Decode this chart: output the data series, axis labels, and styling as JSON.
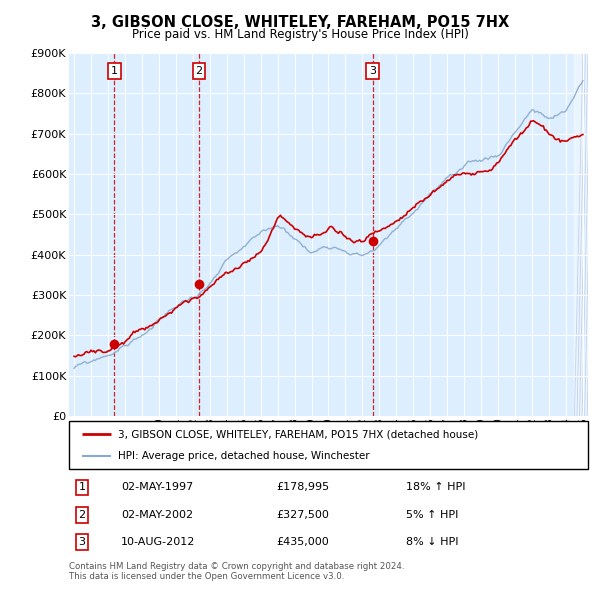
{
  "title": "3, GIBSON CLOSE, WHITELEY, FAREHAM, PO15 7HX",
  "subtitle": "Price paid vs. HM Land Registry's House Price Index (HPI)",
  "sales": [
    {
      "num": 1,
      "date": "02-MAY-1997",
      "price": 178995,
      "pct": "18%",
      "dir": "↑",
      "year": 1997.37
    },
    {
      "num": 2,
      "date": "02-MAY-2002",
      "price": 327500,
      "pct": "5%",
      "dir": "↑",
      "year": 2002.37
    },
    {
      "num": 3,
      "date": "10-AUG-2012",
      "price": 435000,
      "pct": "8%",
      "dir": "↓",
      "year": 2012.61
    }
  ],
  "legend_line1": "3, GIBSON CLOSE, WHITELEY, FAREHAM, PO15 7HX (detached house)",
  "legend_line2": "HPI: Average price, detached house, Winchester",
  "footer1": "Contains HM Land Registry data © Crown copyright and database right 2024.",
  "footer2": "This data is licensed under the Open Government Licence v3.0.",
  "red_color": "#cc0000",
  "blue_color": "#88aacc",
  "plot_bg": "#ddeeff",
  "hatch_color": "#aabbdd",
  "ylim_max": 900000,
  "xlim_start": 1994.7,
  "xlim_end": 2025.3,
  "hpi_anchors_x": [
    1995,
    1996,
    1997,
    1998,
    1999,
    2000,
    2001,
    2002,
    2003,
    2004,
    2005,
    2006,
    2007,
    2008,
    2009,
    2010,
    2011,
    2012,
    2013,
    2014,
    2015,
    2016,
    2017,
    2018,
    2019,
    2020,
    2021,
    2022,
    2023,
    2024,
    2025
  ],
  "hpi_anchors_y": [
    118000,
    128000,
    148000,
    170000,
    198000,
    230000,
    265000,
    290000,
    320000,
    365000,
    390000,
    415000,
    440000,
    415000,
    375000,
    400000,
    400000,
    390000,
    415000,
    450000,
    490000,
    540000,
    580000,
    590000,
    600000,
    615000,
    680000,
    740000,
    710000,
    720000,
    800000
  ],
  "red_anchors_x": [
    1995,
    1996,
    1997,
    1998,
    1999,
    2000,
    2001,
    2002,
    2003,
    2004,
    2005,
    2006,
    2007,
    2008,
    2009,
    2010,
    2011,
    2012,
    2013,
    2014,
    2015,
    2016,
    2017,
    2018,
    2019,
    2020,
    2021,
    2022,
    2023,
    2024,
    2025
  ],
  "red_anchors_y": [
    148000,
    162000,
    178000,
    205000,
    240000,
    275000,
    310000,
    335000,
    365000,
    400000,
    420000,
    440000,
    510000,
    480000,
    440000,
    460000,
    455000,
    445000,
    470000,
    510000,
    540000,
    570000,
    600000,
    610000,
    620000,
    640000,
    700000,
    760000,
    720000,
    700000,
    720000
  ],
  "noise_seed": 99,
  "noise_scale_hpi": 8000,
  "noise_scale_red": 10000
}
